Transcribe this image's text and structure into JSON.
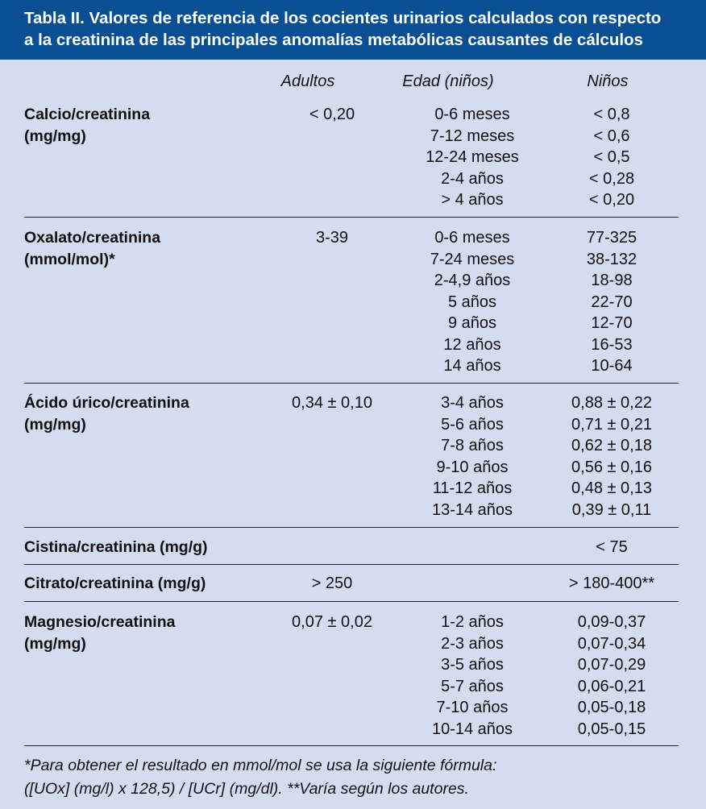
{
  "title": {
    "line1": "Tabla II.  Valores de referencia de los cocientes urinarios calculados con respecto",
    "line2": "a la creatinina de las principales anomalías metabólicas causantes de cálculos"
  },
  "columns": {
    "adultos": "Adultos",
    "edad": "Edad (niños)",
    "ninos": "Niños"
  },
  "sections": [
    {
      "label1": "Calcio/creatinina",
      "label2": "(mg/mg)",
      "adult": "< 0,20",
      "ages": [
        "0-6 meses",
        "7-12 meses",
        "12-24 meses",
        "2-4 años",
        "> 4 años"
      ],
      "values": [
        "< 0,8",
        "< 0,6",
        "< 0,5",
        "< 0,28",
        "< 0,20"
      ]
    },
    {
      "label1": "Oxalato/creatinina",
      "label2": "(mmol/mol)*",
      "adult": "3-39",
      "ages": [
        "0-6 meses",
        "7-24 meses",
        "2-4,9 años",
        "5 años",
        "9 años",
        "12 años",
        "14 años"
      ],
      "values": [
        "77-325",
        "38-132",
        "18-98",
        "22-70",
        "12-70",
        "16-53",
        "10-64"
      ]
    },
    {
      "label1": "Ácido úrico/creatinina",
      "label2": "(mg/mg)",
      "adult": "0,34 ± 0,10",
      "ages": [
        "3-4 años",
        "5-6 años",
        "7-8 años",
        "9-10 años",
        "11-12 años",
        "13-14 años"
      ],
      "values": [
        "0,88 ± 0,22",
        "0,71 ± 0,21",
        "0,62 ± 0,18",
        "0,56 ± 0,16",
        "0,48 ± 0,13",
        "0,39 ± 0,11"
      ]
    },
    {
      "label1": "Cistina/creatinina (mg/g)",
      "label2": "",
      "adult": "",
      "ages": [],
      "values": [
        "< 75"
      ]
    },
    {
      "label1": "Citrato/creatinina (mg/g)",
      "label2": "",
      "adult": "> 250",
      "ages": [],
      "values": [
        "> 180-400**"
      ]
    },
    {
      "label1": "Magnesio/creatinina",
      "label2": "(mg/mg)",
      "adult": "0,07 ± 0,02",
      "ages": [
        "1-2 años",
        "2-3 años",
        "3-5 años",
        "5-7 años",
        "7-10 años",
        "10-14 años"
      ],
      "values": [
        "0,09-0,37",
        "0,07-0,34",
        "0,07-0,29",
        "0,06-0,21",
        "0,05-0,18",
        "0,05-0,15"
      ]
    }
  ],
  "footnote": {
    "line1": "*Para obtener el resultado en mmol/mol se usa la siguiente fórmula:",
    "line2": "([UOx] (mg/l) x 128,5) / [UCr] (mg/dl).  **Varía según los autores."
  }
}
